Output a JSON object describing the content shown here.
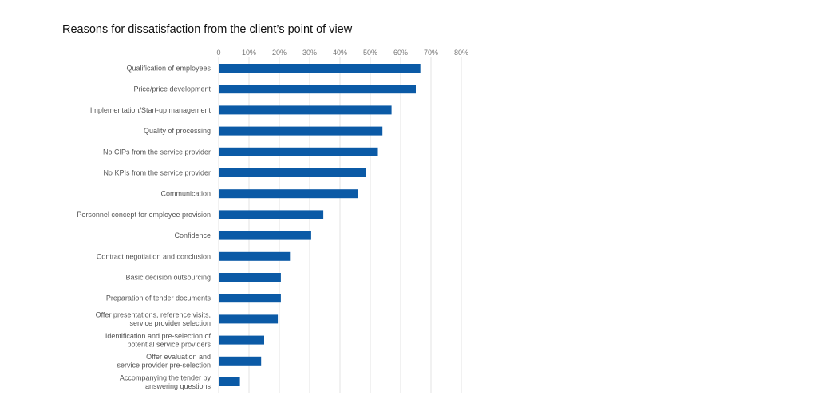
{
  "chart_data": {
    "type": "bar",
    "orientation": "horizontal",
    "title": "Reasons for dissatisfaction from the client’s point of view",
    "xlabel": "",
    "ylabel": "",
    "xlim": [
      0,
      80
    ],
    "x_ticks": [
      "0",
      "10%",
      "20%",
      "30%",
      "40%",
      "50%",
      "60%",
      "70%",
      "80%"
    ],
    "x_tick_values": [
      0,
      10,
      20,
      30,
      40,
      50,
      60,
      70,
      80
    ],
    "grid": true,
    "bar_color": "#0b5aa6",
    "categories": [
      [
        "Qualification of employees"
      ],
      [
        "Price/price development"
      ],
      [
        "Implementation/Start-up management"
      ],
      [
        "Quality of processing"
      ],
      [
        "No CIPs from the service provider"
      ],
      [
        "No KPIs from the service provider"
      ],
      [
        "Communication"
      ],
      [
        "Personnel concept for employee provision"
      ],
      [
        "Confidence"
      ],
      [
        "Contract negotiation and conclusion"
      ],
      [
        "Basic decision outsourcing"
      ],
      [
        "Preparation of tender documents"
      ],
      [
        "Offer presentations, reference visits,",
        "service provider selection"
      ],
      [
        "Identification and pre-selection of",
        "potential service providers"
      ],
      [
        "Offer evaluation and",
        "service provider pre-selection"
      ],
      [
        "Accompanying the tender by",
        "answering questions"
      ]
    ],
    "values": [
      66.5,
      65,
      57,
      54,
      52.5,
      48.5,
      46,
      34.5,
      30.5,
      23.5,
      20.5,
      20.5,
      19.5,
      15,
      14,
      7
    ]
  }
}
